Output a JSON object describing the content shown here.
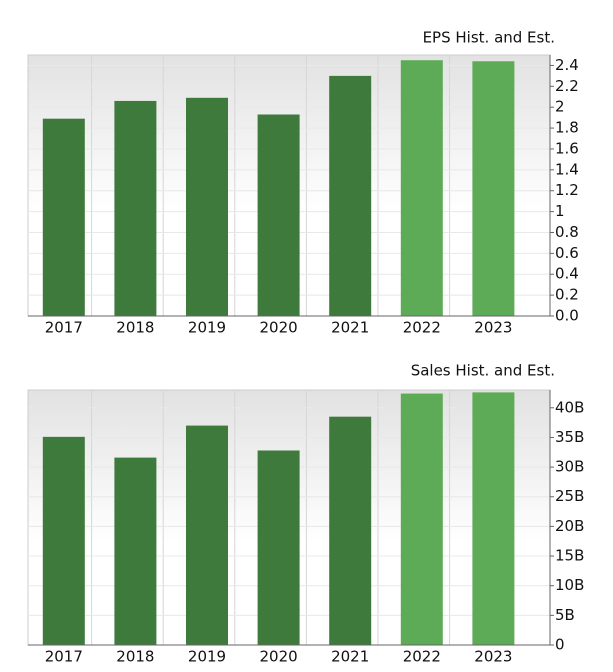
{
  "chart_data": [
    {
      "type": "bar",
      "title": "EPS Hist. and Est.",
      "categories": [
        "2017",
        "2018",
        "2019",
        "2020",
        "2021",
        "2022",
        "2023"
      ],
      "values": [
        1.89,
        2.06,
        2.09,
        1.93,
        2.3,
        2.45,
        2.44
      ],
      "colors": [
        "#3e7a3b",
        "#3e7a3b",
        "#3e7a3b",
        "#3e7a3b",
        "#3e7a3b",
        "#5dab56",
        "#5dab56"
      ],
      "ylim": [
        0,
        2.5
      ],
      "yticks": [
        {
          "value": 0,
          "label": "0.0"
        },
        0.2,
        0.4,
        0.6,
        0.8,
        1,
        1.2,
        1.4,
        1.6,
        1.8,
        2,
        2.2,
        2.4
      ],
      "grid": true
    },
    {
      "type": "bar",
      "title": "Sales Hist. and Est.",
      "categories": [
        "2017",
        "2018",
        "2019",
        "2020",
        "2021",
        "2022",
        "2023"
      ],
      "values": [
        35.1,
        31.6,
        37.0,
        32.8,
        38.5,
        42.4,
        42.6
      ],
      "colors": [
        "#3e7a3b",
        "#3e7a3b",
        "#3e7a3b",
        "#3e7a3b",
        "#3e7a3b",
        "#5dab56",
        "#5dab56"
      ],
      "ylim": [
        0,
        43
      ],
      "yticks": [
        0,
        {
          "value": 5,
          "label": "5B"
        },
        {
          "value": 10,
          "label": "10B"
        },
        {
          "value": 15,
          "label": "15B"
        },
        {
          "value": 20,
          "label": "20B"
        },
        {
          "value": 25,
          "label": "25B"
        },
        {
          "value": 30,
          "label": "30B"
        },
        {
          "value": 35,
          "label": "35B"
        },
        {
          "value": 40,
          "label": "40B"
        }
      ],
      "grid": true
    }
  ]
}
